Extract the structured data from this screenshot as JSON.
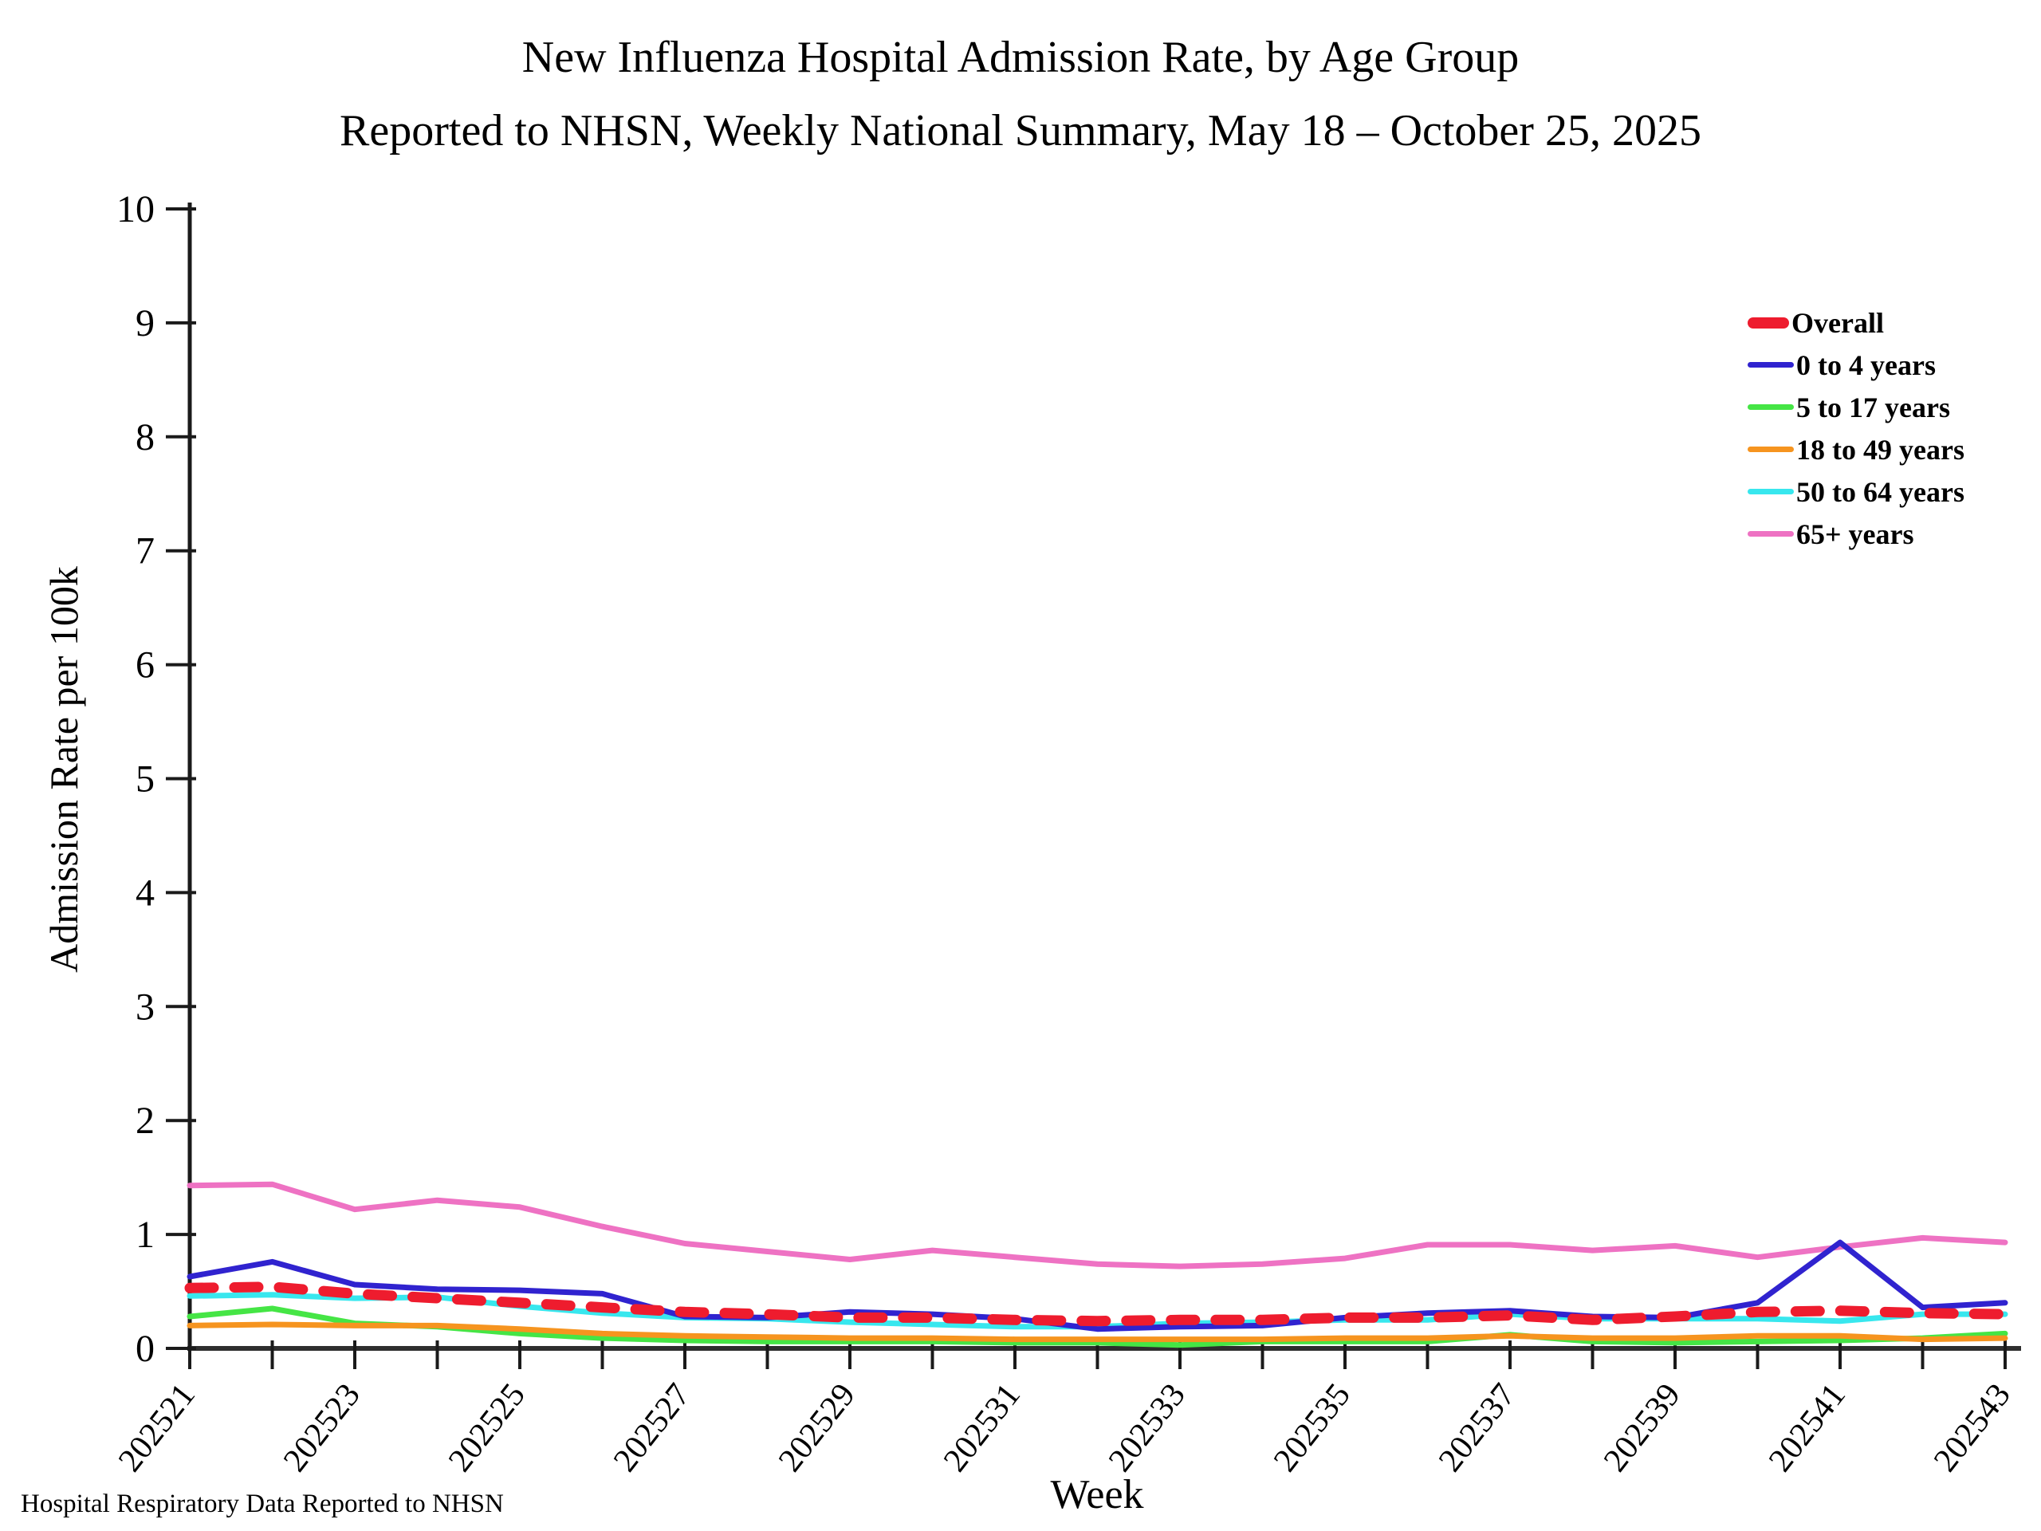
{
  "title": {
    "line1": "New Influenza Hospital Admission Rate, by Age Group",
    "line2": "Reported to NHSN, Weekly National Summary, May 18 – October 25, 2025"
  },
  "footer": "Hospital Respiratory Data Reported to NHSN",
  "chart_data": {
    "type": "line",
    "title": "New Influenza Hospital Admission Rate, by Age Group",
    "subtitle": "Reported to NHSN, Weekly National Summary, May 18 – October 25, 2025",
    "xlabel": "Week",
    "ylabel": "Admission Rate per 100k",
    "ylim": [
      0,
      10
    ],
    "y_ticks": [
      0,
      1,
      2,
      3,
      4,
      5,
      6,
      7,
      8,
      9,
      10
    ],
    "grid": false,
    "legend_position": "upper right",
    "x_label_every": 2,
    "categories": [
      "202521",
      "202522",
      "202523",
      "202524",
      "202525",
      "202526",
      "202527",
      "202528",
      "202529",
      "202530",
      "202531",
      "202532",
      "202533",
      "202534",
      "202535",
      "202536",
      "202537",
      "202538",
      "202539",
      "202540",
      "202541",
      "202542",
      "202543"
    ],
    "series": [
      {
        "name": "Overall",
        "color": "#ee1c2e",
        "style": "dashed",
        "width": 13,
        "values": [
          0.53,
          0.54,
          0.48,
          0.44,
          0.4,
          0.36,
          0.32,
          0.3,
          0.27,
          0.27,
          0.25,
          0.24,
          0.25,
          0.25,
          0.27,
          0.27,
          0.29,
          0.25,
          0.28,
          0.32,
          0.33,
          0.31,
          0.3
        ]
      },
      {
        "name": "0 to 4 years",
        "color": "#3023cf",
        "style": "solid",
        "width": 7,
        "values": [
          0.63,
          0.76,
          0.56,
          0.52,
          0.51,
          0.48,
          0.28,
          0.27,
          0.32,
          0.3,
          0.26,
          0.17,
          0.19,
          0.2,
          0.27,
          0.31,
          0.33,
          0.28,
          0.27,
          0.4,
          0.93,
          0.36,
          0.4
        ]
      },
      {
        "name": "5 to 17 years",
        "color": "#45e545",
        "style": "solid",
        "width": 7,
        "values": [
          0.28,
          0.35,
          0.22,
          0.19,
          0.13,
          0.09,
          0.07,
          0.06,
          0.06,
          0.06,
          0.05,
          0.05,
          0.03,
          0.06,
          0.06,
          0.06,
          0.12,
          0.06,
          0.05,
          0.06,
          0.07,
          0.09,
          0.13
        ]
      },
      {
        "name": "18 to 49 years",
        "color": "#f6941f",
        "style": "solid",
        "width": 7,
        "values": [
          0.2,
          0.21,
          0.2,
          0.2,
          0.17,
          0.13,
          0.11,
          0.1,
          0.09,
          0.09,
          0.08,
          0.08,
          0.08,
          0.08,
          0.09,
          0.09,
          0.11,
          0.09,
          0.09,
          0.11,
          0.11,
          0.08,
          0.09
        ]
      },
      {
        "name": "50 to 64 years",
        "color": "#38e7ee",
        "style": "solid",
        "width": 7,
        "values": [
          0.46,
          0.47,
          0.44,
          0.45,
          0.37,
          0.31,
          0.27,
          0.26,
          0.23,
          0.21,
          0.19,
          0.19,
          0.22,
          0.23,
          0.25,
          0.25,
          0.3,
          0.26,
          0.26,
          0.26,
          0.24,
          0.3,
          0.3
        ]
      },
      {
        "name": "65+ years",
        "color": "#ee72c3",
        "style": "solid",
        "width": 7,
        "values": [
          1.43,
          1.44,
          1.22,
          1.3,
          1.24,
          1.07,
          0.92,
          0.85,
          0.78,
          0.86,
          0.8,
          0.74,
          0.72,
          0.74,
          0.79,
          0.91,
          0.91,
          0.86,
          0.9,
          0.8,
          0.89,
          0.97,
          0.93
        ]
      }
    ]
  }
}
